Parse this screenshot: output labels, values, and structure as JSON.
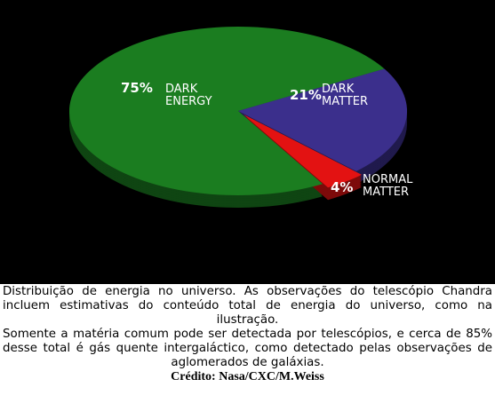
{
  "chart_data": {
    "type": "pie",
    "categories": [
      "DARK ENERGY",
      "DARK MATTER",
      "NORMAL MATTER"
    ],
    "values": [
      75,
      21,
      4
    ],
    "value_labels": [
      "75%",
      "21%",
      "4%"
    ],
    "colors": [
      "#1b7d20",
      "#3b2f8c",
      "#e31212"
    ]
  },
  "caption": {
    "paragraphs": [
      "Distribuição de energia no universo. As observações do telescópio Chandra incluem estimativas do conteúdo total de energia do universo, como na ilustração.",
      "Somente a matéria comum pode ser detectada por telescópios, e cerca de 85% desse total é gás quente intergaláctico, como detectado pelas observações de aglomerados de galáxias."
    ],
    "credit": "Crédito: Nasa/CXC/M.Weiss"
  }
}
